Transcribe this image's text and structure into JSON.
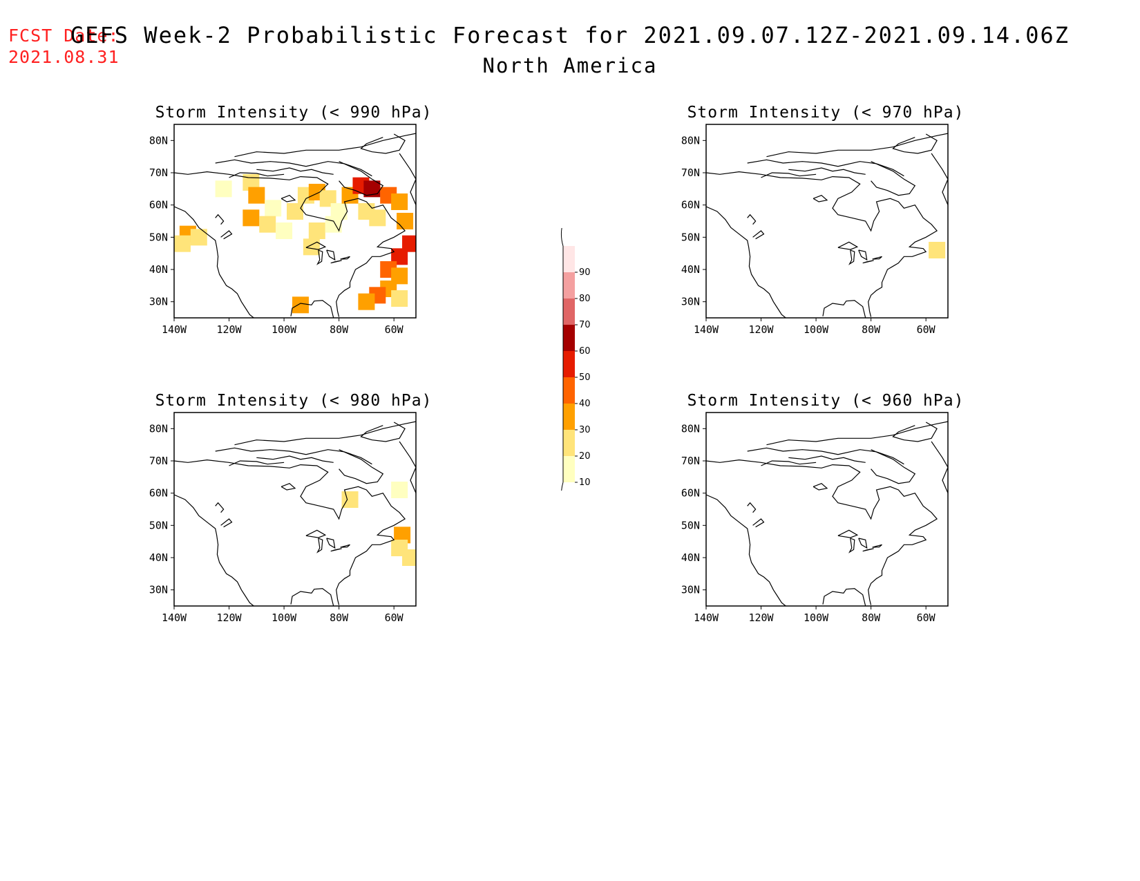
{
  "fcst": {
    "line1": "FCST Date:",
    "line2": "2021.08.31"
  },
  "title": "GEFS Week-2 Probabilistic Forecast for 2021.09.07.12Z-2021.09.14.06Z",
  "subtitle": "North America",
  "colors": {
    "fcst_text": "#ff2020",
    "scale": [
      "#ffffc0",
      "#ffe47a",
      "#ffa000",
      "#ff6400",
      "#e61c00",
      "#a50000",
      "#e06666",
      "#f4a0a0",
      "#ffe6e6"
    ]
  },
  "chart_data": {
    "type": "heatmap",
    "lon_ticks": [
      "140W",
      "120W",
      "100W",
      "80W",
      "60W"
    ],
    "lat_ticks": [
      "80N",
      "70N",
      "60N",
      "50N",
      "40N",
      "30N"
    ],
    "lon_values": [
      -140,
      -120,
      -100,
      -80,
      -60
    ],
    "lat_values": [
      80,
      70,
      60,
      50,
      40,
      30
    ],
    "lon_range": [
      -140,
      -52
    ],
    "lat_range": [
      25,
      85
    ],
    "colorbar": {
      "levels": [
        "10",
        "20",
        "30",
        "40",
        "50",
        "60",
        "70",
        "80",
        "90"
      ],
      "units": "%"
    },
    "panels": [
      {
        "title": "Storm Intensity (< 990 hPa)",
        "cells": [
          {
            "lon": -135,
            "lat": 51,
            "v": 30
          },
          {
            "lon": -137,
            "lat": 48,
            "v": 20
          },
          {
            "lon": -131,
            "lat": 50,
            "v": 20
          },
          {
            "lon": -122,
            "lat": 65,
            "v": 10
          },
          {
            "lon": -112,
            "lat": 67,
            "v": 20
          },
          {
            "lon": -110,
            "lat": 63,
            "v": 30
          },
          {
            "lon": -104,
            "lat": 59,
            "v": 10
          },
          {
            "lon": -112,
            "lat": 56,
            "v": 30
          },
          {
            "lon": -106,
            "lat": 54,
            "v": 20
          },
          {
            "lon": -100,
            "lat": 52,
            "v": 10
          },
          {
            "lon": -96,
            "lat": 58,
            "v": 20
          },
          {
            "lon": -92,
            "lat": 63,
            "v": 20
          },
          {
            "lon": -88,
            "lat": 64,
            "v": 30
          },
          {
            "lon": -84,
            "lat": 62,
            "v": 20
          },
          {
            "lon": -80,
            "lat": 58,
            "v": 10
          },
          {
            "lon": -88,
            "lat": 52,
            "v": 20
          },
          {
            "lon": -82,
            "lat": 54,
            "v": 10
          },
          {
            "lon": -90,
            "lat": 47,
            "v": 20
          },
          {
            "lon": -76,
            "lat": 63,
            "v": 30
          },
          {
            "lon": -72,
            "lat": 66,
            "v": 50
          },
          {
            "lon": -68,
            "lat": 65,
            "v": 60
          },
          {
            "lon": -62,
            "lat": 63,
            "v": 40
          },
          {
            "lon": -58,
            "lat": 61,
            "v": 30
          },
          {
            "lon": -70,
            "lat": 58,
            "v": 20
          },
          {
            "lon": -66,
            "lat": 56,
            "v": 20
          },
          {
            "lon": -56,
            "lat": 55,
            "v": 30
          },
          {
            "lon": -54,
            "lat": 48,
            "v": 50
          },
          {
            "lon": -58,
            "lat": 44,
            "v": 50
          },
          {
            "lon": -62,
            "lat": 40,
            "v": 40
          },
          {
            "lon": -58,
            "lat": 38,
            "v": 30
          },
          {
            "lon": -62,
            "lat": 34,
            "v": 30
          },
          {
            "lon": -58,
            "lat": 31,
            "v": 20
          },
          {
            "lon": -66,
            "lat": 32,
            "v": 40
          },
          {
            "lon": -70,
            "lat": 30,
            "v": 30
          },
          {
            "lon": -94,
            "lat": 29,
            "v": 30
          }
        ]
      },
      {
        "title": "Storm Intensity (< 970 hPa)",
        "cells": [
          {
            "lon": -56,
            "lat": 46,
            "v": 20
          }
        ]
      },
      {
        "title": "Storm Intensity (< 980 hPa)",
        "cells": [
          {
            "lon": -76,
            "lat": 58,
            "v": 20
          },
          {
            "lon": -57,
            "lat": 47,
            "v": 30
          },
          {
            "lon": -58,
            "lat": 43,
            "v": 20
          },
          {
            "lon": -54,
            "lat": 40,
            "v": 20
          },
          {
            "lon": -58,
            "lat": 61,
            "v": 10
          }
        ]
      },
      {
        "title": "Storm Intensity (< 960 hPa)",
        "cells": []
      }
    ]
  }
}
